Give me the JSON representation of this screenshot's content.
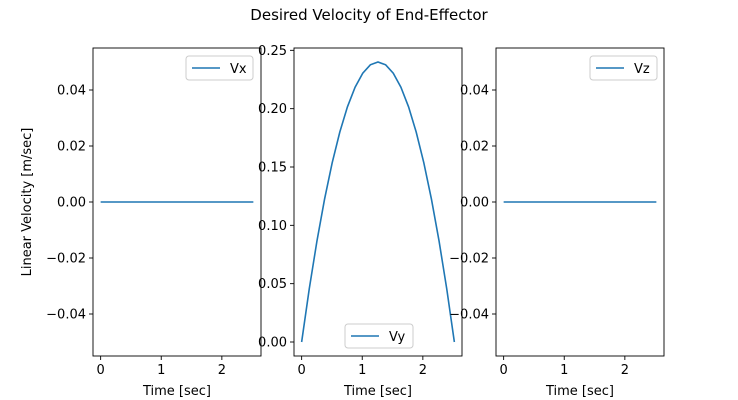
{
  "figure": {
    "title": "Desired Velocity of End-Effector"
  },
  "chart_data": [
    {
      "type": "line",
      "xlabel": "Time [sec]",
      "ylabel": "Linear Velocity [m/sec]",
      "xlim": [
        -0.126,
        2.646
      ],
      "ylim": [
        -0.055,
        0.055
      ],
      "x_ticks": [
        0,
        1,
        2
      ],
      "x_tick_labels": [
        "0",
        "1",
        "2"
      ],
      "y_ticks": [
        -0.04,
        -0.02,
        0.0,
        0.02,
        0.04
      ],
      "y_tick_labels": [
        "−0.04",
        "−0.02",
        "0.00",
        "0.02",
        "0.04"
      ],
      "legend": "upper right",
      "grid": false,
      "series": [
        {
          "name": "Vx",
          "color": "#1f77b4",
          "x": [
            0,
            2.52
          ],
          "y": [
            0,
            0
          ]
        }
      ]
    },
    {
      "type": "line",
      "xlabel": "Time [sec]",
      "ylabel": "",
      "xlim": [
        -0.126,
        2.646
      ],
      "ylim": [
        -0.012,
        0.252
      ],
      "x_ticks": [
        0,
        1,
        2
      ],
      "x_tick_labels": [
        "0",
        "1",
        "2"
      ],
      "y_ticks": [
        0.0,
        0.05,
        0.1,
        0.15,
        0.2,
        0.25
      ],
      "y_tick_labels": [
        "0.00",
        "0.05",
        "0.10",
        "0.15",
        "0.20",
        "0.25"
      ],
      "legend": "lower center",
      "grid": false,
      "series": [
        {
          "name": "Vy",
          "color": "#1f77b4",
          "x": [
            0,
            0.126,
            0.252,
            0.378,
            0.504,
            0.63,
            0.756,
            0.882,
            1.008,
            1.134,
            1.26,
            1.386,
            1.512,
            1.638,
            1.764,
            1.89,
            2.016,
            2.142,
            2.268,
            2.394,
            2.52
          ],
          "y": [
            0,
            0.0456,
            0.0864,
            0.1224,
            0.1536,
            0.18,
            0.2016,
            0.2184,
            0.2304,
            0.2376,
            0.24,
            0.2376,
            0.2304,
            0.2184,
            0.2016,
            0.18,
            0.1536,
            0.1224,
            0.0864,
            0.0456,
            0
          ]
        }
      ]
    },
    {
      "type": "line",
      "xlabel": "Time [sec]",
      "ylabel": "",
      "xlim": [
        -0.126,
        2.646
      ],
      "ylim": [
        -0.055,
        0.055
      ],
      "x_ticks": [
        0,
        1,
        2
      ],
      "x_tick_labels": [
        "0",
        "1",
        "2"
      ],
      "y_ticks": [
        -0.04,
        -0.02,
        0.0,
        0.02,
        0.04
      ],
      "y_tick_labels": [
        "−0.04",
        "−0.02",
        "0.00",
        "0.02",
        "0.04"
      ],
      "legend": "upper right",
      "grid": false,
      "series": [
        {
          "name": "Vz",
          "color": "#1f77b4",
          "x": [
            0,
            2.52
          ],
          "y": [
            0,
            0
          ]
        }
      ]
    }
  ]
}
